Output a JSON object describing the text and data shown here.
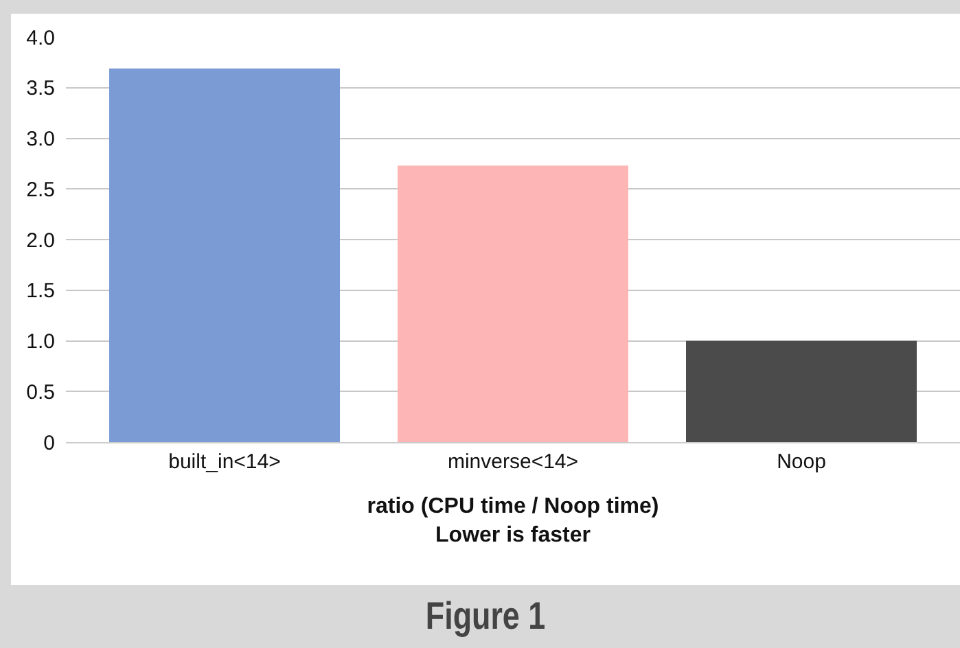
{
  "chart_data": {
    "type": "bar",
    "xlabel": "ratio (CPU time / Noop time)\nLower is faster",
    "categories": [
      "built_in<14>",
      "minverse<14>",
      "Noop"
    ],
    "values": [
      3.69,
      2.73,
      1.0
    ],
    "colors": [
      "#7b9bd4",
      "#fdb5b6",
      "#4b4b4b"
    ],
    "ylim": [
      0,
      4.0
    ],
    "yticks": [
      {
        "value": 0,
        "label": "0"
      },
      {
        "value": 0.5,
        "label": "0.5"
      },
      {
        "value": 1,
        "label": "1.0"
      },
      {
        "value": 1.5,
        "label": "1.5"
      },
      {
        "value": 2,
        "label": "2.0"
      },
      {
        "value": 2.5,
        "label": "2.5"
      },
      {
        "value": 3,
        "label": "3.0"
      },
      {
        "value": 3.5,
        "label": "3.5"
      },
      {
        "value": 4,
        "label": "4.0"
      }
    ],
    "grid": "y",
    "annotations": [
      "Figure 1"
    ]
  }
}
